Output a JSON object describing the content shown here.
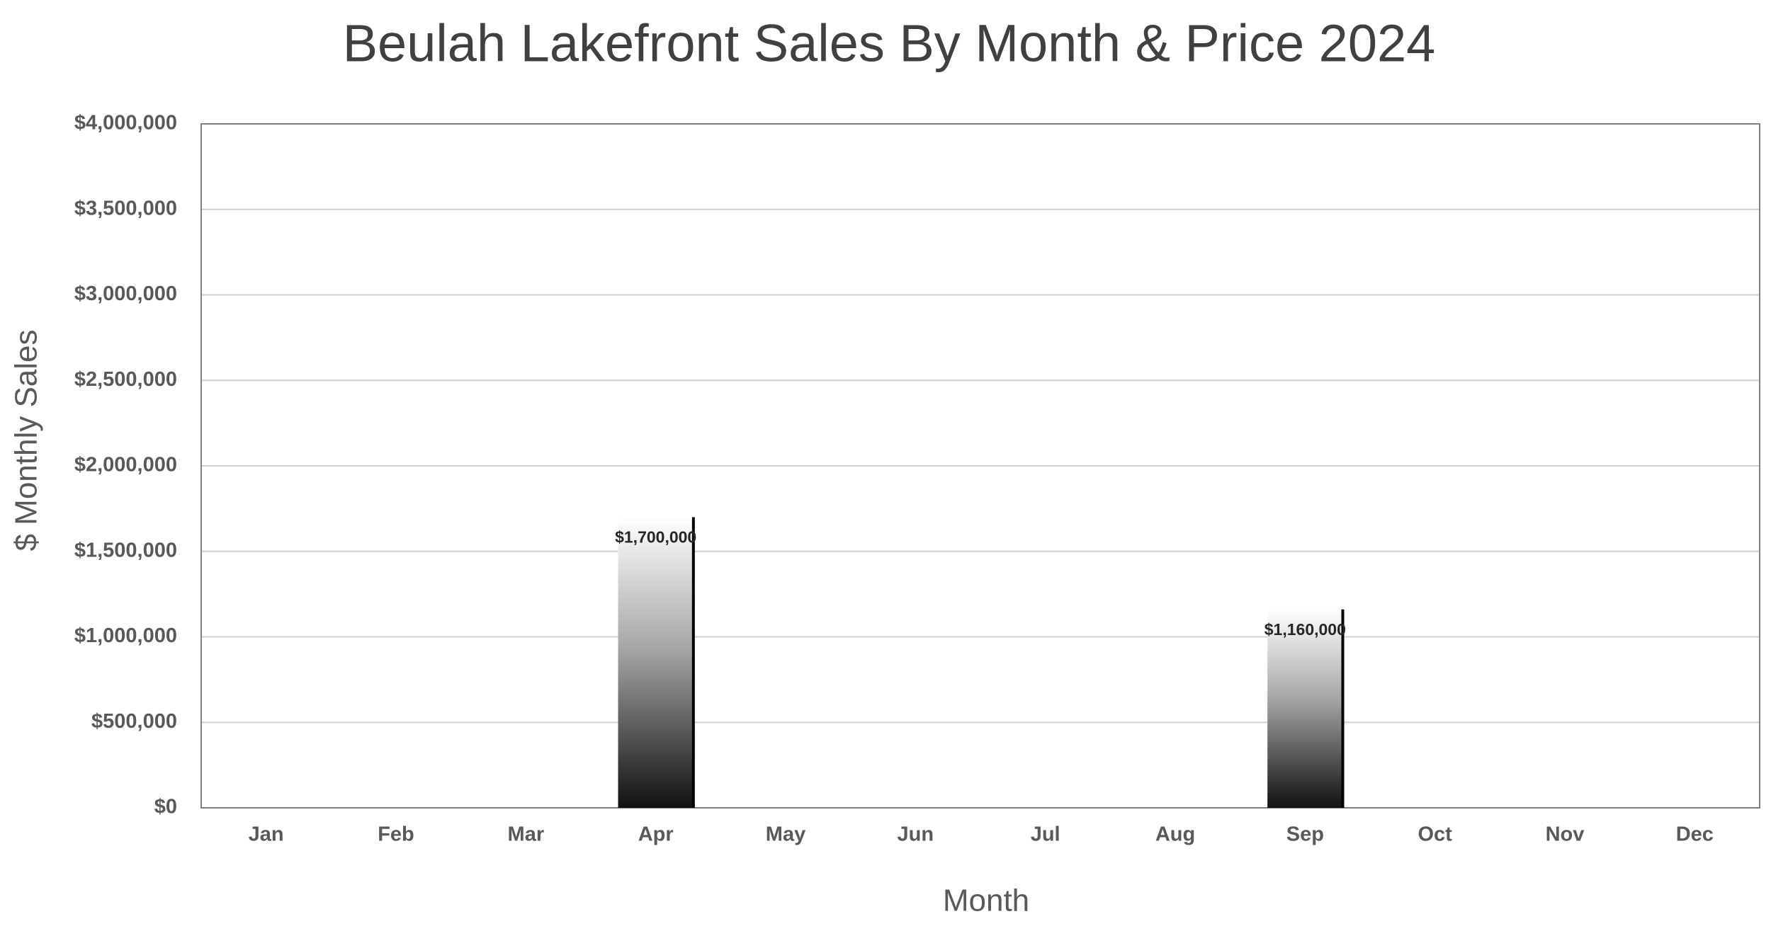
{
  "chart_data": {
    "type": "bar",
    "title": "Beulah Lakefront Sales By Month & Price 2024",
    "x_label": "Month",
    "y_label": "$ Monthly Sales",
    "categories": [
      "Jan",
      "Feb",
      "Mar",
      "Apr",
      "May",
      "Jun",
      "Jul",
      "Aug",
      "Sep",
      "Oct",
      "Nov",
      "Dec"
    ],
    "values": [
      null,
      null,
      null,
      1700000,
      null,
      null,
      null,
      null,
      1160000,
      null,
      null,
      null
    ],
    "value_labels": [
      null,
      null,
      null,
      "$1,700,000",
      null,
      null,
      null,
      null,
      "$1,160,000",
      null,
      null,
      null
    ],
    "color": "#111111",
    "ylim": [
      0,
      4000000
    ],
    "yticks": [
      {
        "value": 0,
        "label": "$0"
      },
      {
        "value": 500000,
        "label": "$500,000"
      },
      {
        "value": 1000000,
        "label": "$1,000,000"
      },
      {
        "value": 1500000,
        "label": "$1,500,000"
      },
      {
        "value": 2000000,
        "label": "$2,000,000"
      },
      {
        "value": 2500000,
        "label": "$2,500,000"
      },
      {
        "value": 3000000,
        "label": "$3,000,000"
      },
      {
        "value": 3500000,
        "label": "$3,500,000"
      },
      {
        "value": 4000000,
        "label": "$4,000,000"
      }
    ],
    "grid": true
  }
}
